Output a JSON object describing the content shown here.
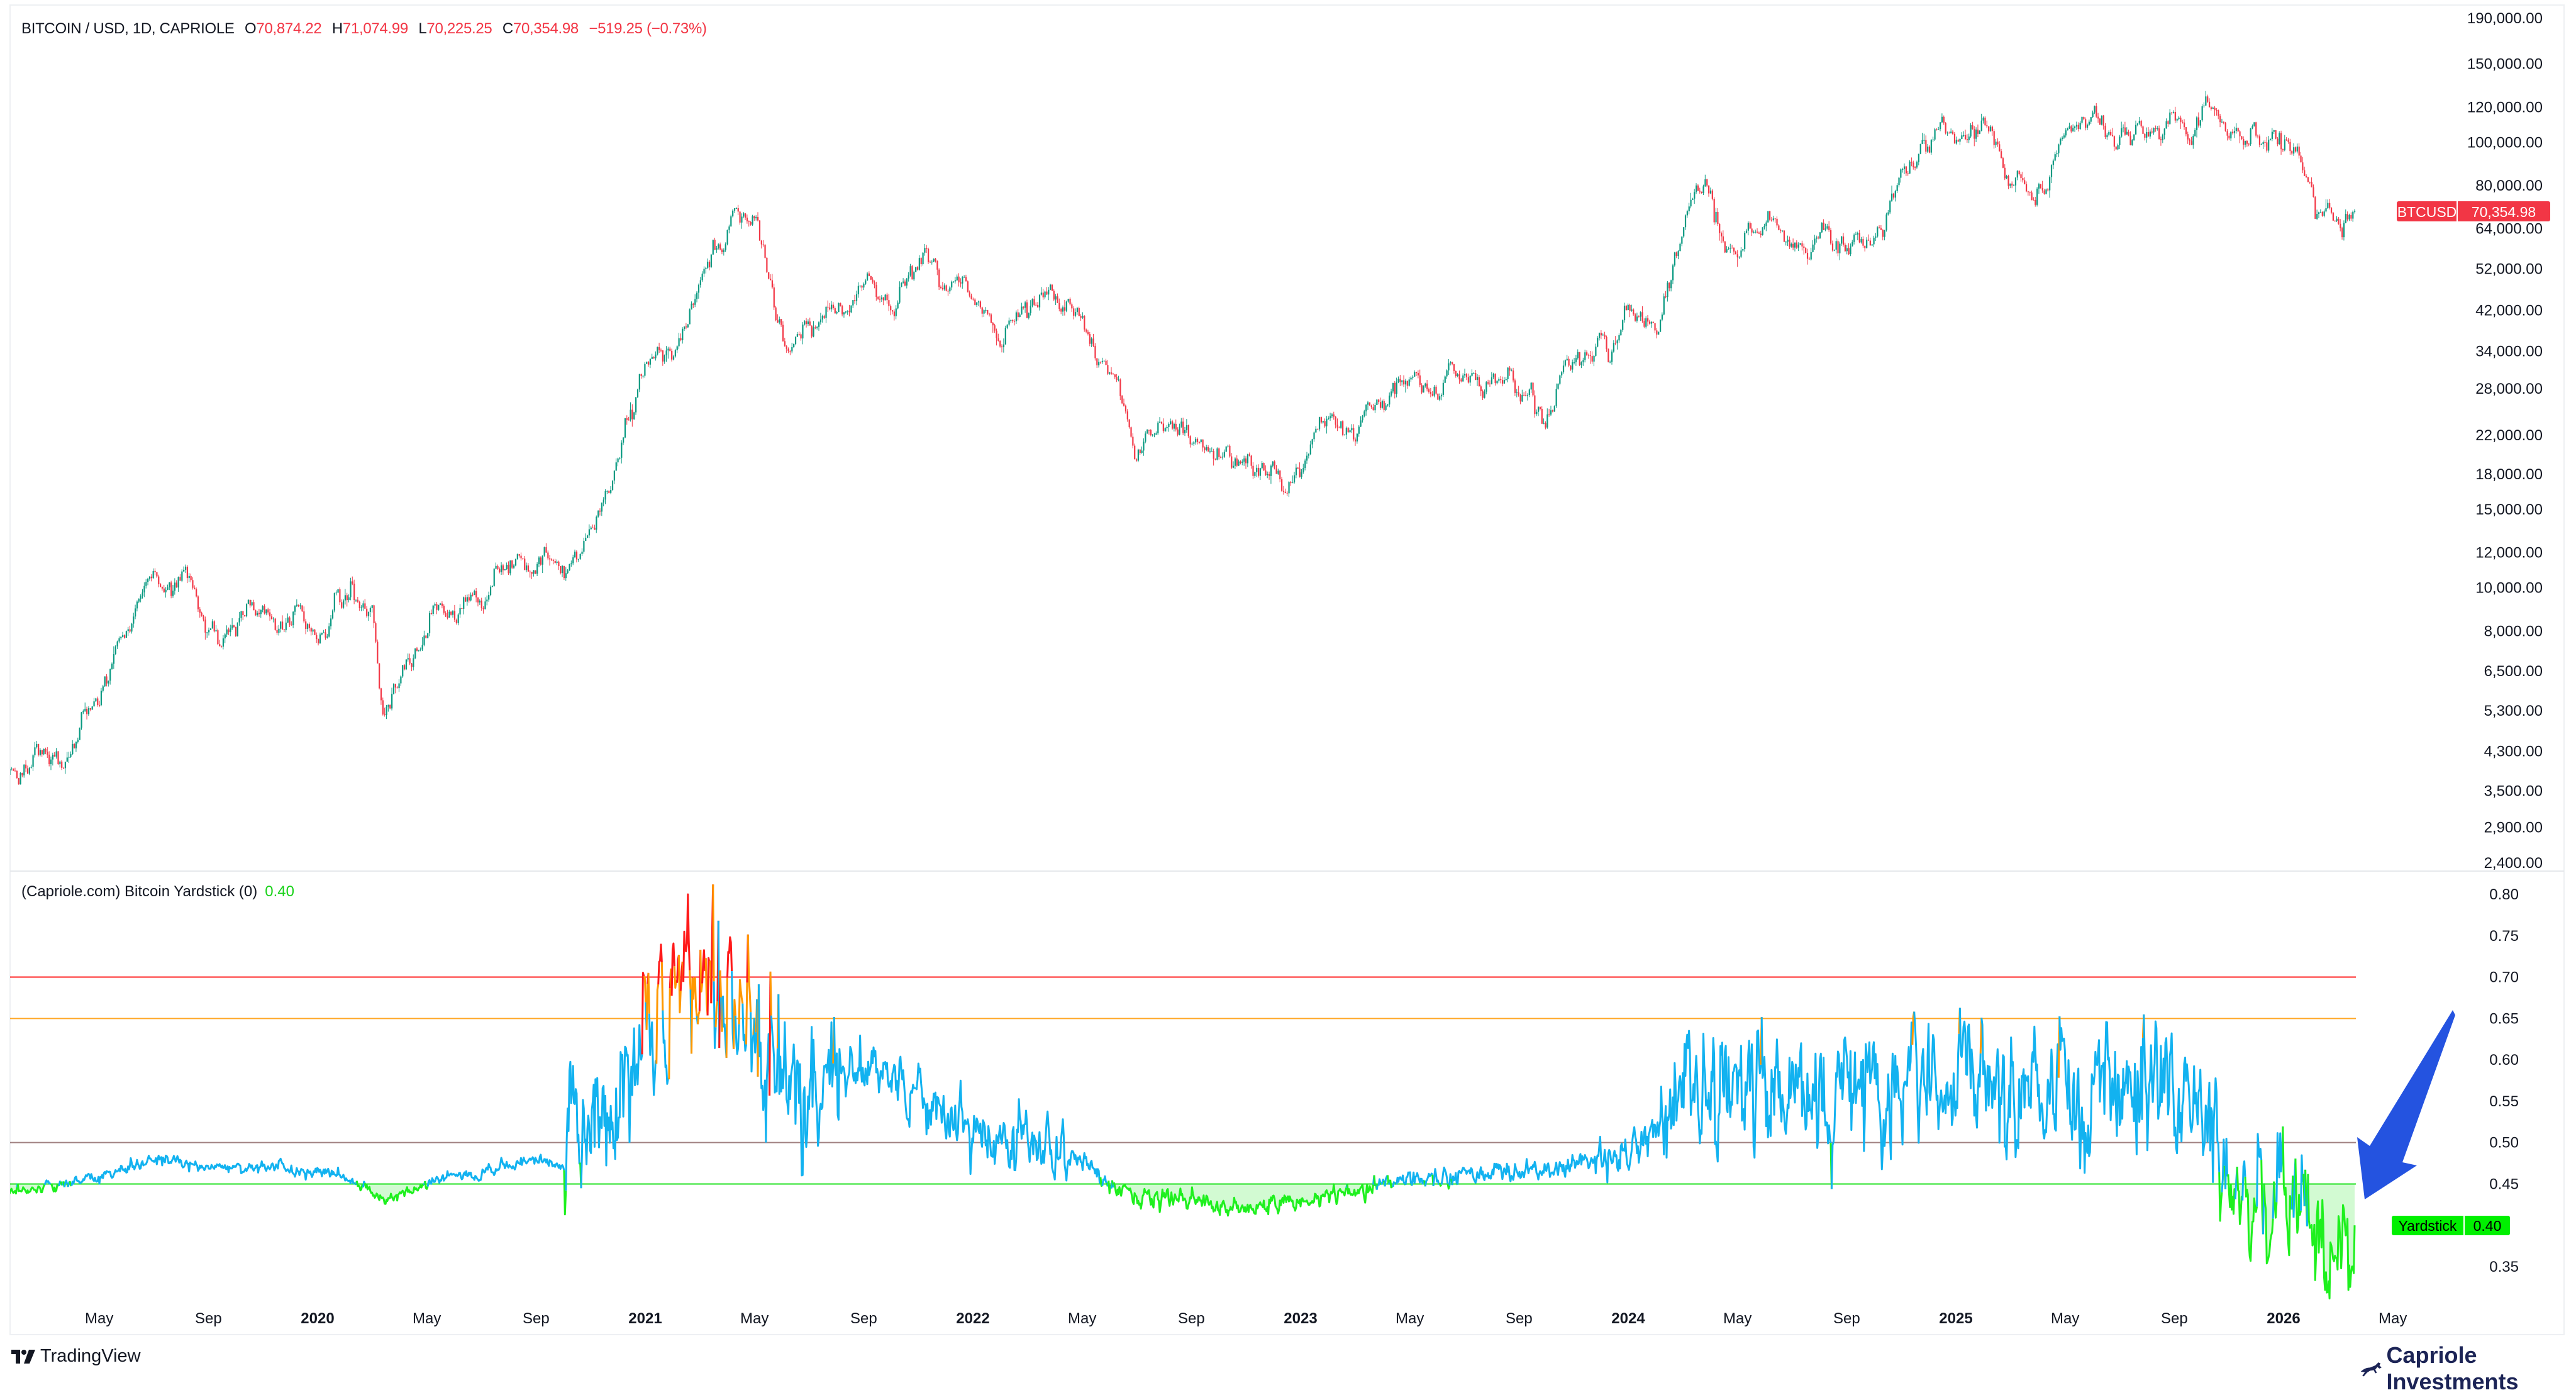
{
  "header": {
    "symbol": "BITCOIN / USD, 1D, CAPRIOLE",
    "open_key": "O",
    "open": "70,874.22",
    "high_key": "H",
    "high": "71,074.99",
    "low_key": "L",
    "low": "70,225.25",
    "close_key": "C",
    "close": "70,354.98",
    "change": "−519.25 (−0.73%)"
  },
  "indicator": {
    "title": "(Capriole.com) Bitcoin Yardstick (0)",
    "value": "0.40"
  },
  "last_price_tag": {
    "symbol": "BTCUSD",
    "value": "70,354.98"
  },
  "yardstick_tag": {
    "name": "Yardstick",
    "value": "0.40"
  },
  "footer": {
    "tradingview": "TradingView",
    "brand": "Capriole Investments"
  },
  "colors": {
    "up": "#089981",
    "down": "#f23645",
    "green": "#1ef01e",
    "blue": "#12b2f0",
    "orange": "#ff9800",
    "red": "#ff1a1a",
    "arrow": "#2453e0",
    "brand": "#1c2456"
  },
  "chart_data": [
    {
      "type": "candlestick",
      "title": "BITCOIN / USD, 1D, CAPRIOLE",
      "yscale": "log",
      "ylim": [
        2400,
        190000
      ],
      "y_ticks": [
        {
          "label": "190,000.00",
          "value": 190000
        },
        {
          "label": "150,000.00",
          "value": 150000
        },
        {
          "label": "120,000.00",
          "value": 120000
        },
        {
          "label": "100,000.00",
          "value": 100000
        },
        {
          "label": "80,000.00",
          "value": 80000
        },
        {
          "label": "64,000.00",
          "value": 64000
        },
        {
          "label": "52,000.00",
          "value": 52000
        },
        {
          "label": "42,000.00",
          "value": 42000
        },
        {
          "label": "34,000.00",
          "value": 34000
        },
        {
          "label": "28,000.00",
          "value": 28000
        },
        {
          "label": "22,000.00",
          "value": 22000
        },
        {
          "label": "18,000.00",
          "value": 18000
        },
        {
          "label": "15,000.00",
          "value": 15000
        },
        {
          "label": "12,000.00",
          "value": 12000
        },
        {
          "label": "10,000.00",
          "value": 10000
        },
        {
          "label": "8,000.00",
          "value": 8000
        },
        {
          "label": "6,500.00",
          "value": 6500
        },
        {
          "label": "5,300.00",
          "value": 5300
        },
        {
          "label": "4,300.00",
          "value": 4300
        },
        {
          "label": "3,500.00",
          "value": 3500
        },
        {
          "label": "2,900.00",
          "value": 2900
        },
        {
          "label": "2,400.00",
          "value": 2400
        }
      ],
      "approx_closes": [
        [
          "2019-01-01",
          3700
        ],
        [
          "2019-02-01",
          3450
        ],
        [
          "2019-03-01",
          3850
        ],
        [
          "2019-04-01",
          4100
        ],
        [
          "2019-05-01",
          5300
        ],
        [
          "2019-06-01",
          8500
        ],
        [
          "2019-07-01",
          11500
        ],
        [
          "2019-08-01",
          10000
        ],
        [
          "2019-09-01",
          9600
        ],
        [
          "2019-10-01",
          8300
        ],
        [
          "2019-11-01",
          9200
        ],
        [
          "2019-12-01",
          7500
        ],
        [
          "2020-01-01",
          7200
        ],
        [
          "2020-02-01",
          9300
        ],
        [
          "2020-03-01",
          8600
        ],
        [
          "2020-03-12",
          4500
        ],
        [
          "2020-04-01",
          6400
        ],
        [
          "2020-05-01",
          8600
        ],
        [
          "2020-06-01",
          9450
        ],
        [
          "2020-07-01",
          9100
        ],
        [
          "2020-08-01",
          11300
        ],
        [
          "2020-09-01",
          11700
        ],
        [
          "2020-10-01",
          10800
        ],
        [
          "2020-11-01",
          13800
        ],
        [
          "2020-12-01",
          19700
        ],
        [
          "2021-01-01",
          29000
        ],
        [
          "2021-02-01",
          33000
        ],
        [
          "2021-03-01",
          45000
        ],
        [
          "2021-04-01",
          58800
        ],
        [
          "2021-04-14",
          63500
        ],
        [
          "2021-05-01",
          57700
        ],
        [
          "2021-06-01",
          37300
        ],
        [
          "2021-07-01",
          35000
        ],
        [
          "2021-08-01",
          41500
        ],
        [
          "2021-09-01",
          47100
        ],
        [
          "2021-10-01",
          43800
        ],
        [
          "2021-11-01",
          61300
        ],
        [
          "2021-11-10",
          67000
        ],
        [
          "2021-12-01",
          57000
        ],
        [
          "2022-01-01",
          46300
        ],
        [
          "2022-02-01",
          38500
        ],
        [
          "2022-03-01",
          43200
        ],
        [
          "2022-04-01",
          45500
        ],
        [
          "2022-05-01",
          37700
        ],
        [
          "2022-06-01",
          31800
        ],
        [
          "2022-07-01",
          19900
        ],
        [
          "2022-08-01",
          23300
        ],
        [
          "2022-09-01",
          20000
        ],
        [
          "2022-10-01",
          19400
        ],
        [
          "2022-11-01",
          20500
        ],
        [
          "2022-12-01",
          17200
        ],
        [
          "2023-01-01",
          16500
        ],
        [
          "2023-02-01",
          23100
        ],
        [
          "2023-03-01",
          23100
        ],
        [
          "2023-04-01",
          28500
        ],
        [
          "2023-05-01",
          29200
        ],
        [
          "2023-06-01",
          27200
        ],
        [
          "2023-07-01",
          30500
        ],
        [
          "2023-08-01",
          29200
        ],
        [
          "2023-09-01",
          26000
        ],
        [
          "2023-10-01",
          27000
        ],
        [
          "2023-11-01",
          34600
        ],
        [
          "2023-12-01",
          37700
        ],
        [
          "2024-01-01",
          42300
        ],
        [
          "2024-02-01",
          42600
        ],
        [
          "2024-03-01",
          61200
        ],
        [
          "2024-03-14",
          71500
        ],
        [
          "2024-04-01",
          71300
        ],
        [
          "2024-05-01",
          60600
        ],
        [
          "2024-06-01",
          67500
        ],
        [
          "2024-07-01",
          62700
        ],
        [
          "2024-08-01",
          64600
        ],
        [
          "2024-09-01",
          59000
        ],
        [
          "2024-10-01",
          63300
        ],
        [
          "2024-11-01",
          70200
        ],
        [
          "2024-12-01",
          96400
        ],
        [
          "2024-12-17",
          106000
        ],
        [
          "2025-01-01",
          93400
        ],
        [
          "2025-02-01",
          102400
        ],
        [
          "2025-03-01",
          84300
        ],
        [
          "2025-04-01",
          82500
        ],
        [
          "2025-05-01",
          94200
        ],
        [
          "2025-06-01",
          104600
        ],
        [
          "2025-07-01",
          107100
        ],
        [
          "2025-08-01",
          115700
        ],
        [
          "2025-09-01",
          108200
        ],
        [
          "2025-10-01",
          114000
        ],
        [
          "2025-10-06",
          124000
        ],
        [
          "2025-11-01",
          109500
        ],
        [
          "2025-12-01",
          90400
        ],
        [
          "2026-01-01",
          87500
        ],
        [
          "2026-02-01",
          78000
        ],
        [
          "2026-02-06",
          62000
        ],
        [
          "2026-03-01",
          67000
        ],
        [
          "2026-03-20",
          70354.98
        ]
      ]
    },
    {
      "type": "line",
      "title": "(Capriole.com) Bitcoin Yardstick (0)",
      "ylim": [
        0.33,
        0.81
      ],
      "y_ticks": [
        {
          "label": "0.80",
          "value": 0.8
        },
        {
          "label": "0.75",
          "value": 0.75
        },
        {
          "label": "0.70",
          "value": 0.7
        },
        {
          "label": "0.65",
          "value": 0.65
        },
        {
          "label": "0.60",
          "value": 0.6
        },
        {
          "label": "0.55",
          "value": 0.55
        },
        {
          "label": "0.50",
          "value": 0.5
        },
        {
          "label": "0.45",
          "value": 0.45
        },
        {
          "label": "0.35",
          "value": 0.35
        }
      ],
      "levels": [
        {
          "value": 0.7,
          "color": "#ff2020"
        },
        {
          "value": 0.65,
          "color": "#ffa726"
        },
        {
          "value": 0.5,
          "color": "#a08080"
        },
        {
          "value": 0.45,
          "color": "#1ee01e"
        }
      ],
      "color_zones": {
        "green_below": 0.45,
        "orange_above": 0.65,
        "red_above": 0.7
      },
      "approx_values": [
        [
          "2019-01-01",
          0.44
        ],
        [
          "2019-03-01",
          0.445
        ],
        [
          "2019-05-01",
          0.46
        ],
        [
          "2019-07-01",
          0.48
        ],
        [
          "2019-09-01",
          0.47
        ],
        [
          "2019-11-01",
          0.47
        ],
        [
          "2020-01-01",
          0.465
        ],
        [
          "2020-02-01",
          0.46
        ],
        [
          "2020-03-15",
          0.43
        ],
        [
          "2020-05-01",
          0.45
        ],
        [
          "2020-06-01",
          0.46
        ],
        [
          "2020-07-01",
          0.46
        ],
        [
          "2020-08-01",
          0.475
        ],
        [
          "2020-09-01",
          0.48
        ],
        [
          "2020-10-01",
          0.47
        ],
        [
          "2020-11-01",
          0.52
        ],
        [
          "2020-12-01",
          0.56
        ],
        [
          "2021-01-01",
          0.63
        ],
        [
          "2021-02-01",
          0.68
        ],
        [
          "2021-03-01",
          0.69
        ],
        [
          "2021-04-01",
          0.67
        ],
        [
          "2021-05-01",
          0.63
        ],
        [
          "2021-06-01",
          0.57
        ],
        [
          "2021-07-01",
          0.58
        ],
        [
          "2021-08-01",
          0.6
        ],
        [
          "2021-09-01",
          0.58
        ],
        [
          "2021-10-01",
          0.57
        ],
        [
          "2021-11-01",
          0.57
        ],
        [
          "2021-12-01",
          0.53
        ],
        [
          "2022-01-01",
          0.51
        ],
        [
          "2022-03-01",
          0.5
        ],
        [
          "2022-05-01",
          0.48
        ],
        [
          "2022-06-01",
          0.45
        ],
        [
          "2022-07-01",
          0.435
        ],
        [
          "2022-09-01",
          0.43
        ],
        [
          "2022-11-01",
          0.42
        ],
        [
          "2023-01-01",
          0.43
        ],
        [
          "2023-03-01",
          0.44
        ],
        [
          "2023-05-01",
          0.455
        ],
        [
          "2023-07-01",
          0.46
        ],
        [
          "2023-09-01",
          0.465
        ],
        [
          "2023-11-01",
          0.475
        ],
        [
          "2024-01-01",
          0.49
        ],
        [
          "2024-02-01",
          0.51
        ],
        [
          "2024-03-01",
          0.55
        ],
        [
          "2024-05-01",
          0.57
        ],
        [
          "2024-07-01",
          0.56
        ],
        [
          "2024-09-01",
          0.55
        ],
        [
          "2024-11-01",
          0.57
        ],
        [
          "2024-12-01",
          0.6
        ],
        [
          "2025-01-01",
          0.59
        ],
        [
          "2025-03-01",
          0.55
        ],
        [
          "2025-05-01",
          0.56
        ],
        [
          "2025-07-01",
          0.57
        ],
        [
          "2025-09-01",
          0.56
        ],
        [
          "2025-10-15",
          0.53
        ],
        [
          "2025-11-15",
          0.45
        ],
        [
          "2025-12-15",
          0.44
        ],
        [
          "2026-01-20",
          0.43
        ],
        [
          "2026-02-10",
          0.37
        ],
        [
          "2026-03-20",
          0.4
        ]
      ]
    }
  ],
  "time_axis": [
    {
      "label": "May",
      "date": "2019-05-01",
      "bold": false
    },
    {
      "label": "Sep",
      "date": "2019-09-01",
      "bold": false
    },
    {
      "label": "2020",
      "date": "2020-01-01",
      "bold": true
    },
    {
      "label": "May",
      "date": "2020-05-01",
      "bold": false
    },
    {
      "label": "Sep",
      "date": "2020-09-01",
      "bold": false
    },
    {
      "label": "2021",
      "date": "2021-01-01",
      "bold": true
    },
    {
      "label": "May",
      "date": "2021-05-01",
      "bold": false
    },
    {
      "label": "Sep",
      "date": "2021-09-01",
      "bold": false
    },
    {
      "label": "2022",
      "date": "2022-01-01",
      "bold": true
    },
    {
      "label": "May",
      "date": "2022-05-01",
      "bold": false
    },
    {
      "label": "Sep",
      "date": "2022-09-01",
      "bold": false
    },
    {
      "label": "2023",
      "date": "2023-01-01",
      "bold": true
    },
    {
      "label": "May",
      "date": "2023-05-01",
      "bold": false
    },
    {
      "label": "Sep",
      "date": "2023-09-01",
      "bold": false
    },
    {
      "label": "2024",
      "date": "2024-01-01",
      "bold": true
    },
    {
      "label": "May",
      "date": "2024-05-01",
      "bold": false
    },
    {
      "label": "Sep",
      "date": "2024-09-01",
      "bold": false
    },
    {
      "label": "2025",
      "date": "2025-01-01",
      "bold": true
    },
    {
      "label": "May",
      "date": "2025-05-01",
      "bold": false
    },
    {
      "label": "Sep",
      "date": "2025-09-01",
      "bold": false
    },
    {
      "label": "2026",
      "date": "2026-01-01",
      "bold": true
    },
    {
      "label": "May",
      "date": "2026-05-01",
      "bold": false
    }
  ]
}
